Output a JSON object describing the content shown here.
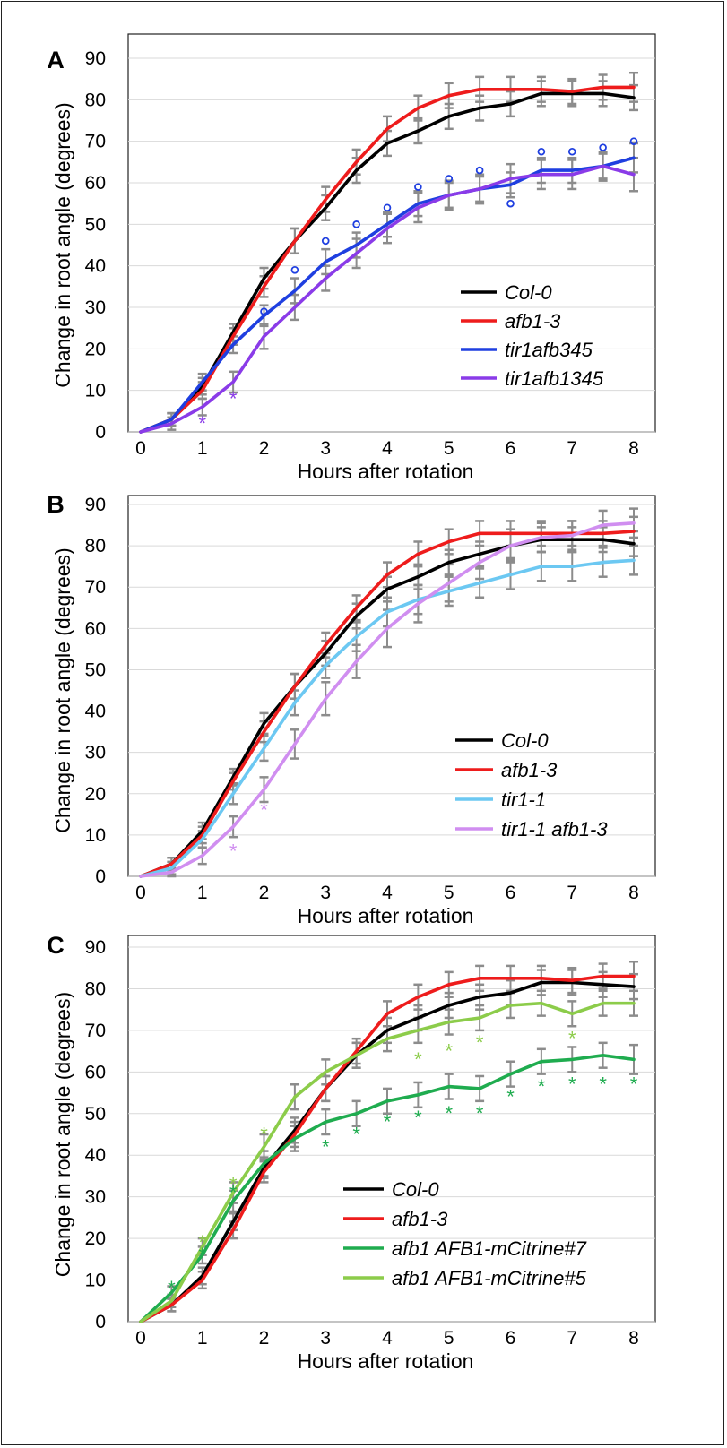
{
  "chart_data": [
    {
      "type": "line",
      "panel": "A",
      "xlabel": "Hours after rotation",
      "ylabel": "Change in root angle (degrees)",
      "xlim": [
        0,
        8
      ],
      "ylim": [
        0,
        90
      ],
      "xticks": [
        0,
        1,
        2,
        3,
        4,
        5,
        6,
        7,
        8
      ],
      "yticks": [
        0,
        10,
        20,
        30,
        40,
        50,
        60,
        70,
        80,
        90
      ],
      "grid": "horizontal",
      "legend": "right",
      "x": [
        0,
        0.5,
        1,
        1.5,
        2,
        2.5,
        3,
        3.5,
        4,
        4.5,
        5,
        5.5,
        6,
        6.5,
        7,
        7.5,
        8
      ],
      "series": [
        {
          "name": "Col-0",
          "color": "#000000",
          "values": [
            0,
            3,
            11,
            24,
            37,
            46,
            54,
            63,
            69.5,
            72.5,
            76,
            78,
            79,
            81.5,
            81.5,
            81.5,
            80.5
          ],
          "errors": [
            0,
            1.5,
            2,
            2,
            2.5,
            3,
            3,
            3,
            3,
            3,
            3,
            3,
            3,
            3,
            3,
            3,
            3
          ]
        },
        {
          "name": "afb1-3",
          "color": "#ee1c1c",
          "values": [
            0,
            3,
            10,
            23,
            35,
            46,
            56,
            65,
            73,
            78,
            81,
            82.5,
            82.5,
            82.5,
            82,
            83,
            83
          ],
          "errors": [
            0,
            1.5,
            2,
            2,
            2.5,
            3,
            3,
            3,
            3,
            3,
            3,
            3,
            3,
            3,
            3,
            3,
            3.5
          ]
        },
        {
          "name": "tir1afb345",
          "color": "#1f3fe0",
          "values": [
            0,
            3,
            12,
            21,
            28,
            34,
            41,
            45,
            50,
            55,
            57,
            58.5,
            59.5,
            63,
            63,
            64,
            66
          ],
          "errors": [
            0,
            1.5,
            2,
            2,
            2.5,
            3,
            3,
            3,
            3,
            3,
            3,
            3,
            3,
            3,
            3,
            3,
            3.5
          ]
        },
        {
          "name": "tir1afb1345",
          "color": "#8a3be8",
          "values": [
            0,
            2,
            6,
            12,
            23,
            30,
            37,
            43,
            49,
            54,
            57,
            58.5,
            61,
            62,
            62,
            64,
            62
          ],
          "errors": [
            0,
            1.5,
            2,
            2.5,
            3,
            3,
            3,
            3.5,
            3.5,
            3.5,
            3.5,
            3.5,
            3.5,
            3.5,
            3.5,
            3.5,
            4
          ]
        }
      ],
      "significance": [
        {
          "symbol": "*",
          "color": "#8a3be8",
          "points": [
            {
              "x": 1,
              "y": 3
            },
            {
              "x": 1.5,
              "y": 9
            }
          ]
        },
        {
          "symbol": "o",
          "color": "#1f3fe0",
          "points": [
            {
              "x": 2,
              "y": 29
            },
            {
              "x": 2.5,
              "y": 39
            },
            {
              "x": 3,
              "y": 46
            },
            {
              "x": 3.5,
              "y": 50
            },
            {
              "x": 4,
              "y": 54
            },
            {
              "x": 4.5,
              "y": 59
            },
            {
              "x": 5,
              "y": 61
            },
            {
              "x": 5.5,
              "y": 63
            },
            {
              "x": 6,
              "y": 55
            },
            {
              "x": 6.5,
              "y": 67.5
            },
            {
              "x": 7,
              "y": 67.5
            },
            {
              "x": 7.5,
              "y": 68.5
            },
            {
              "x": 8,
              "y": 70
            }
          ]
        }
      ]
    },
    {
      "type": "line",
      "panel": "B",
      "xlabel": "Hours after rotation",
      "ylabel": "Change in root angle (degrees)",
      "xlim": [
        0,
        8
      ],
      "ylim": [
        0,
        90
      ],
      "xticks": [
        0,
        1,
        2,
        3,
        4,
        5,
        6,
        7,
        8
      ],
      "yticks": [
        0,
        10,
        20,
        30,
        40,
        50,
        60,
        70,
        80,
        90
      ],
      "grid": "horizontal",
      "legend": "right",
      "x": [
        0,
        0.5,
        1,
        1.5,
        2,
        2.5,
        3,
        3.5,
        4,
        4.5,
        5,
        5.5,
        6,
        6.5,
        7,
        7.5,
        8
      ],
      "series": [
        {
          "name": "Col-0",
          "color": "#000000",
          "values": [
            0,
            3,
            11,
            24,
            37,
            46,
            54,
            63,
            69.5,
            72.5,
            76,
            78,
            80,
            81.5,
            81.5,
            81.5,
            80.5
          ],
          "errors": [
            0,
            1.5,
            2,
            2,
            2.5,
            3,
            3,
            3,
            3,
            3,
            3,
            3,
            3,
            3,
            3,
            3,
            3
          ]
        },
        {
          "name": "afb1-3",
          "color": "#ee1c1c",
          "values": [
            0,
            3,
            10,
            23,
            35,
            46,
            56,
            65,
            73,
            78,
            81,
            83,
            83,
            83,
            83,
            83,
            83.5
          ],
          "errors": [
            0,
            1.5,
            2,
            2,
            2.5,
            3,
            3,
            3,
            3,
            3,
            3,
            3,
            3,
            3,
            3,
            3,
            3.5
          ]
        },
        {
          "name": "tir1-1",
          "color": "#6cc8f2",
          "values": [
            0,
            2,
            9,
            20,
            31,
            42,
            51,
            58,
            64,
            67,
            69,
            71,
            73,
            75,
            75,
            76,
            76.5
          ],
          "errors": [
            0,
            1.5,
            2,
            2.5,
            3,
            3,
            3,
            3.5,
            3.5,
            3.5,
            3.5,
            3.5,
            3.5,
            3.5,
            3.5,
            3.5,
            3.5
          ]
        },
        {
          "name": "tir1-1 afb1-3",
          "color": "#d08ef0",
          "values": [
            0,
            1,
            5,
            12,
            21,
            32,
            43,
            52,
            60,
            66,
            71,
            76,
            80,
            82,
            82.5,
            85,
            85.5
          ],
          "errors": [
            0,
            1,
            2,
            2.5,
            3,
            3.5,
            4,
            4,
            4.5,
            4.5,
            4.5,
            4,
            4,
            3.5,
            3.5,
            3.5,
            3.5
          ]
        }
      ],
      "significance": [
        {
          "symbol": "*",
          "color": "#d08ef0",
          "points": [
            {
              "x": 1.5,
              "y": 7
            },
            {
              "x": 2,
              "y": 17
            }
          ]
        }
      ]
    },
    {
      "type": "line",
      "panel": "C",
      "xlabel": "Hours after rotation",
      "ylabel": "Change in root angle (degrees)",
      "xlim": [
        0,
        8
      ],
      "ylim": [
        0,
        90
      ],
      "xticks": [
        0,
        1,
        2,
        3,
        4,
        5,
        6,
        7,
        8
      ],
      "yticks": [
        0,
        10,
        20,
        30,
        40,
        50,
        60,
        70,
        80,
        90
      ],
      "grid": "horizontal",
      "legend": "bottom-right",
      "x": [
        0,
        0.5,
        1,
        1.5,
        2,
        2.5,
        3,
        3.5,
        4,
        4.5,
        5,
        5.5,
        6,
        6.5,
        7,
        7.5,
        8
      ],
      "series": [
        {
          "name": "Col-0",
          "color": "#000000",
          "values": [
            0,
            4,
            11,
            24,
            37,
            46,
            56,
            64,
            70,
            73,
            76,
            78,
            79,
            81.5,
            81.5,
            81,
            80.5
          ],
          "errors": [
            0,
            1.5,
            2,
            2,
            2.5,
            3,
            3,
            3,
            3,
            3,
            3,
            3,
            3,
            3,
            3,
            3,
            3
          ]
        },
        {
          "name": "afb1-3",
          "color": "#ee1c1c",
          "values": [
            0,
            4,
            10,
            22,
            36,
            45,
            56,
            65,
            74,
            78,
            81,
            82.5,
            82.5,
            82.5,
            82,
            83,
            83
          ],
          "errors": [
            0,
            1.5,
            2,
            2,
            2.5,
            3,
            3,
            3,
            3,
            3,
            3,
            3,
            3,
            3,
            3,
            3,
            3.5
          ]
        },
        {
          "name": "afb1 AFB1-mCitrine#7",
          "color": "#1fac4f",
          "values": [
            0,
            7,
            16,
            29,
            38,
            44,
            48,
            50,
            53,
            54.5,
            56.5,
            56,
            59.5,
            62.5,
            63,
            64,
            63
          ],
          "errors": [
            0,
            1.5,
            2,
            2.5,
            3,
            3,
            3,
            3,
            3,
            3,
            3,
            3,
            3,
            3,
            3,
            3,
            3.5
          ]
        },
        {
          "name": "afb1 AFB1-mCitrine#5",
          "color": "#8ccc4a",
          "values": [
            0,
            5,
            18,
            31,
            42,
            54,
            60,
            64,
            68,
            70,
            72,
            73,
            76,
            76.5,
            74,
            76.5,
            76.5
          ],
          "errors": [
            0,
            1.5,
            2,
            2.5,
            3,
            3,
            3,
            3,
            3,
            3,
            3,
            3,
            3,
            3,
            3,
            3,
            3
          ]
        }
      ],
      "significance": [
        {
          "symbol": "*",
          "color": "#1fac4f",
          "points": [
            {
              "x": 0.5,
              "y": 9
            },
            {
              "x": 1,
              "y": 17
            },
            {
              "x": 1.5,
              "y": 32
            },
            {
              "x": 3,
              "y": 43
            },
            {
              "x": 3.5,
              "y": 46
            },
            {
              "x": 4,
              "y": 49
            },
            {
              "x": 4.5,
              "y": 50
            },
            {
              "x": 5,
              "y": 51
            },
            {
              "x": 5.5,
              "y": 51
            },
            {
              "x": 6,
              "y": 55
            },
            {
              "x": 6.5,
              "y": 57.5
            },
            {
              "x": 7,
              "y": 58
            },
            {
              "x": 7.5,
              "y": 58
            },
            {
              "x": 8,
              "y": 58
            }
          ]
        },
        {
          "symbol": "*",
          "color": "#8ccc4a",
          "points": [
            {
              "x": 1,
              "y": 20
            },
            {
              "x": 1.5,
              "y": 34
            },
            {
              "x": 2,
              "y": 46
            },
            {
              "x": 4.5,
              "y": 64
            },
            {
              "x": 5,
              "y": 66
            },
            {
              "x": 5.5,
              "y": 68
            },
            {
              "x": 7,
              "y": 69
            }
          ]
        }
      ]
    }
  ]
}
